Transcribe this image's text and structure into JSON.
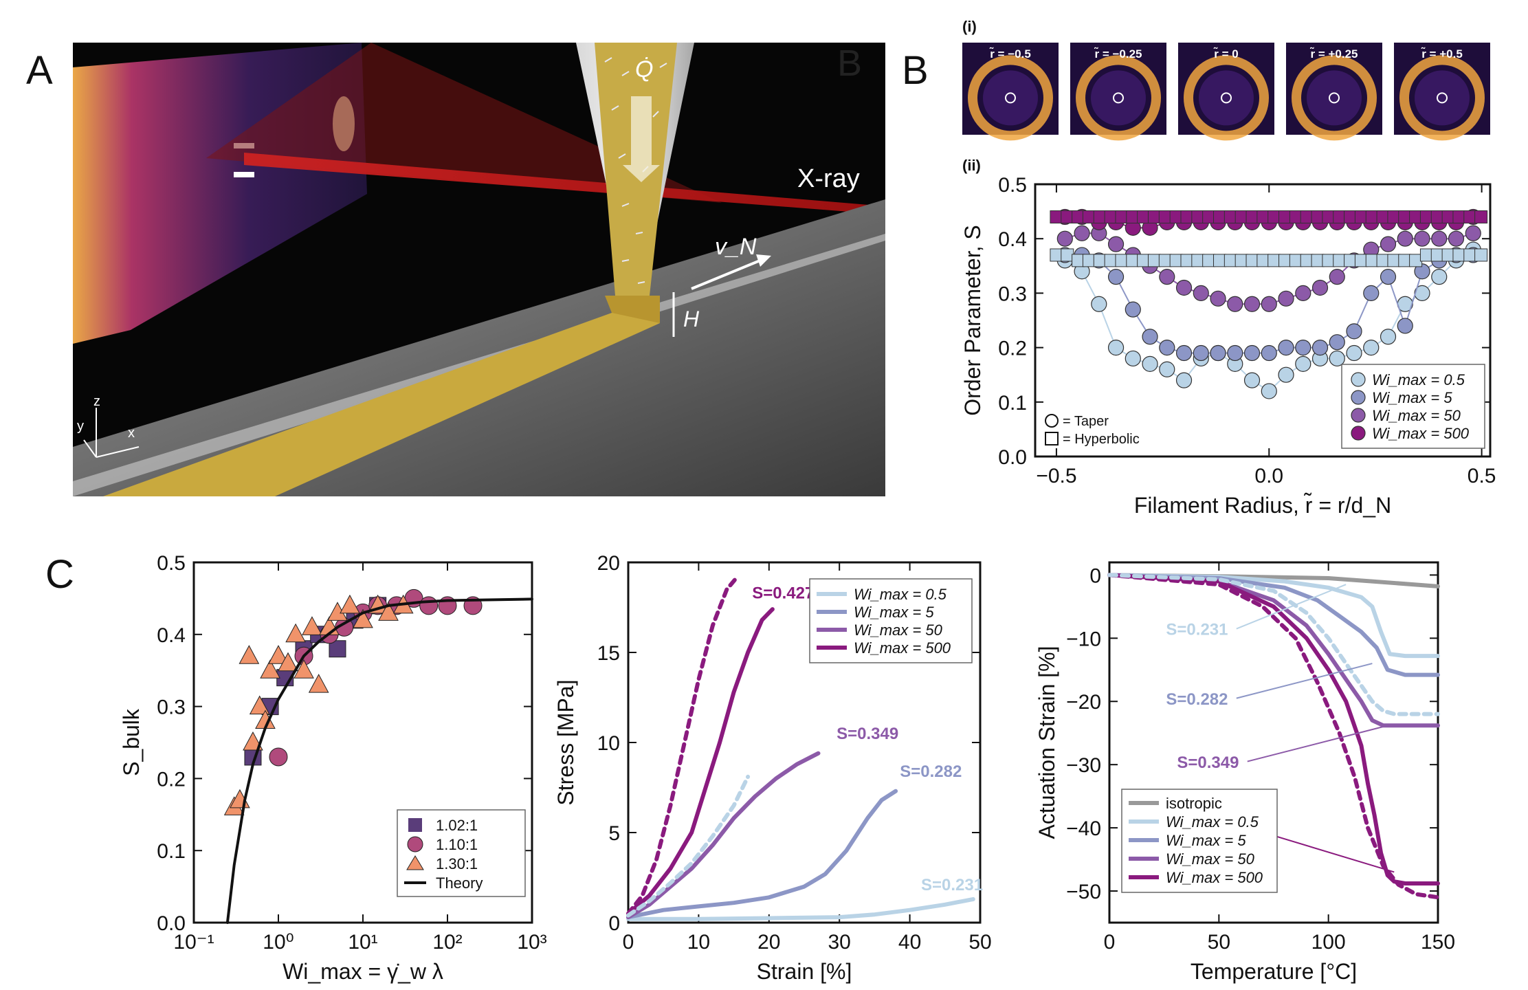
{
  "panels": {
    "A": "A",
    "B": "B",
    "C": "C",
    "B_i": "(i)",
    "B_ii": "(ii)",
    "A_hidden_B": "B"
  },
  "schematic": {
    "label_q": "Q̇",
    "label_xray": "X-ray",
    "label_vn": "v_N",
    "label_h": "H",
    "axis_z": "z",
    "axis_y": "y",
    "axis_x": "x"
  },
  "saxs": {
    "images": [
      {
        "label": "r̃ = −0.5"
      },
      {
        "label": "r̃ = −0.25"
      },
      {
        "label": "r̃ = 0"
      },
      {
        "label": "r̃ = +0.25"
      },
      {
        "label": "r̃ = +0.5"
      }
    ]
  },
  "chart_data": [
    {
      "id": "order-parameter",
      "type": "scatter",
      "xlabel": "Filament Radius, r̃ = r/d_N",
      "ylabel": "Order Parameter, S",
      "xlim": [
        -0.55,
        0.52
      ],
      "ylim": [
        0.0,
        0.5
      ],
      "xticks": [
        "−0.5",
        "0.0",
        "0.5"
      ],
      "yticks": [
        "0.0",
        "0.1",
        "0.2",
        "0.3",
        "0.4",
        "0.5"
      ],
      "legend": [
        "Wi_max = 0.5",
        "Wi_max = 5",
        "Wi_max = 50",
        "Wi_max = 500"
      ],
      "legend_markers": [
        "= Taper",
        "= Hyperbolic"
      ],
      "colors": [
        "#b9d3e6",
        "#8c96c6",
        "#8c5aa8",
        "#8a1a7e"
      ],
      "series": [
        {
          "name": "Wi_max = 0.5",
          "shape": "taper",
          "x": [
            -0.48,
            -0.44,
            -0.4,
            -0.36,
            -0.32,
            -0.28,
            -0.24,
            -0.2,
            -0.16,
            -0.12,
            -0.08,
            -0.04,
            0.0,
            0.04,
            0.08,
            0.12,
            0.16,
            0.2,
            0.24,
            0.28,
            0.32,
            0.36,
            0.4,
            0.44,
            0.48
          ],
          "y": [
            0.36,
            0.34,
            0.28,
            0.2,
            0.18,
            0.17,
            0.16,
            0.14,
            0.18,
            0.19,
            0.17,
            0.14,
            0.12,
            0.15,
            0.17,
            0.18,
            0.18,
            0.19,
            0.2,
            0.22,
            0.28,
            0.3,
            0.33,
            0.36,
            0.38
          ]
        },
        {
          "name": "Wi_max = 5",
          "shape": "taper",
          "x": [
            -0.48,
            -0.44,
            -0.4,
            -0.36,
            -0.32,
            -0.28,
            -0.24,
            -0.2,
            -0.16,
            -0.12,
            -0.08,
            -0.04,
            0.0,
            0.04,
            0.08,
            0.12,
            0.16,
            0.2,
            0.24,
            0.28,
            0.32,
            0.36,
            0.4,
            0.44,
            0.48
          ],
          "y": [
            0.37,
            0.37,
            0.36,
            0.33,
            0.27,
            0.22,
            0.2,
            0.19,
            0.19,
            0.19,
            0.19,
            0.19,
            0.19,
            0.2,
            0.2,
            0.2,
            0.21,
            0.23,
            0.3,
            0.33,
            0.24,
            0.34,
            0.36,
            0.37,
            0.37
          ]
        },
        {
          "name": "Wi_max = 50",
          "shape": "taper",
          "x": [
            -0.48,
            -0.44,
            -0.4,
            -0.36,
            -0.32,
            -0.28,
            -0.24,
            -0.2,
            -0.16,
            -0.12,
            -0.08,
            -0.04,
            0.0,
            0.04,
            0.08,
            0.12,
            0.16,
            0.2,
            0.24,
            0.28,
            0.32,
            0.36,
            0.4,
            0.44,
            0.48
          ],
          "y": [
            0.4,
            0.41,
            0.41,
            0.39,
            0.37,
            0.35,
            0.33,
            0.31,
            0.3,
            0.29,
            0.28,
            0.28,
            0.28,
            0.29,
            0.3,
            0.31,
            0.33,
            0.36,
            0.38,
            0.39,
            0.4,
            0.4,
            0.4,
            0.4,
            0.41
          ]
        },
        {
          "name": "Wi_max = 500",
          "shape": "taper",
          "x": [
            -0.48,
            -0.44,
            -0.4,
            -0.36,
            -0.32,
            -0.28,
            -0.24,
            -0.2,
            -0.16,
            -0.12,
            -0.08,
            -0.04,
            0.0,
            0.04,
            0.08,
            0.12,
            0.16,
            0.2,
            0.24,
            0.28,
            0.32,
            0.36,
            0.4,
            0.44,
            0.48
          ],
          "y": [
            0.44,
            0.44,
            0.43,
            0.43,
            0.42,
            0.42,
            0.43,
            0.43,
            0.43,
            0.43,
            0.43,
            0.43,
            0.43,
            0.43,
            0.43,
            0.43,
            0.43,
            0.43,
            0.43,
            0.43,
            0.43,
            0.43,
            0.43,
            0.43,
            0.44
          ]
        },
        {
          "name": "Hyperbolic Wi_max = 0.5",
          "shape": "hyperbolic",
          "x": [
            -0.5,
            -0.4,
            -0.3,
            -0.2,
            -0.1,
            0.0,
            0.1,
            0.2,
            0.3,
            0.4,
            0.5
          ],
          "y": [
            0.37,
            0.36,
            0.36,
            0.36,
            0.36,
            0.36,
            0.36,
            0.36,
            0.36,
            0.37,
            0.37
          ]
        },
        {
          "name": "Hyperbolic Wi_max = 500",
          "shape": "hyperbolic",
          "x": [
            -0.5,
            -0.4,
            -0.3,
            -0.2,
            -0.1,
            0.0,
            0.1,
            0.2,
            0.3,
            0.4,
            0.5
          ],
          "y": [
            0.44,
            0.44,
            0.44,
            0.44,
            0.44,
            0.44,
            0.44,
            0.44,
            0.44,
            0.44,
            0.44
          ]
        }
      ]
    },
    {
      "id": "s-bulk",
      "type": "scatter",
      "xlabel": "Wi_max = γ̇_w λ",
      "ylabel": "S_bulk",
      "xscale": "log",
      "xlim": [
        0.1,
        1000
      ],
      "ylim": [
        0.0,
        0.5
      ],
      "xticks": [
        "10⁻¹",
        "10⁰",
        "10¹",
        "10²",
        "10³"
      ],
      "yticks": [
        "0.0",
        "0.1",
        "0.2",
        "0.3",
        "0.4",
        "0.5"
      ],
      "legend": [
        "1.02:1",
        "1.10:1",
        "1.30:1",
        "Theory"
      ],
      "series": [
        {
          "name": "1.02:1",
          "marker": "square",
          "color": "#5a3d7a",
          "x": [
            0.5,
            0.8,
            1.2,
            2,
            3,
            5,
            8,
            15
          ],
          "y": [
            0.23,
            0.3,
            0.34,
            0.38,
            0.4,
            0.38,
            0.42,
            0.44
          ]
        },
        {
          "name": "1.10:1",
          "marker": "circle",
          "color": "#b04a7c",
          "x": [
            1,
            2,
            4,
            6,
            10,
            15,
            25,
            40,
            60,
            100,
            200
          ],
          "y": [
            0.23,
            0.37,
            0.4,
            0.41,
            0.43,
            0.44,
            0.44,
            0.45,
            0.44,
            0.44,
            0.44
          ]
        },
        {
          "name": "1.30:1",
          "marker": "triangle",
          "color": "#f0936a",
          "x": [
            0.3,
            0.35,
            0.45,
            0.5,
            0.6,
            0.7,
            0.8,
            1,
            1.3,
            1.6,
            2,
            2.5,
            3,
            4,
            5,
            7,
            10,
            15,
            20,
            30
          ],
          "y": [
            0.16,
            0.17,
            0.37,
            0.25,
            0.3,
            0.28,
            0.35,
            0.37,
            0.36,
            0.4,
            0.35,
            0.41,
            0.33,
            0.41,
            0.43,
            0.44,
            0.42,
            0.44,
            0.43,
            0.44
          ]
        },
        {
          "name": "Theory",
          "marker": "line",
          "color": "#111111",
          "x": [
            0.25,
            0.3,
            0.4,
            0.5,
            0.7,
            1,
            2,
            3,
            5,
            10,
            20,
            50,
            100,
            300,
            1000
          ],
          "y": [
            0.0,
            0.08,
            0.17,
            0.22,
            0.27,
            0.31,
            0.37,
            0.39,
            0.41,
            0.43,
            0.44,
            0.445,
            0.447,
            0.448,
            0.449
          ]
        }
      ]
    },
    {
      "id": "stress-strain",
      "type": "line",
      "xlabel": "Strain [%]",
      "ylabel": "Stress [MPa]",
      "xlim": [
        0,
        50
      ],
      "ylim": [
        0,
        20
      ],
      "xticks": [
        "0",
        "10",
        "20",
        "30",
        "40",
        "50"
      ],
      "yticks": [
        "0",
        "5",
        "10",
        "15",
        "20"
      ],
      "legend": [
        "Wi_max = 0.5",
        "Wi_max = 5",
        "Wi_max = 50",
        "Wi_max = 500"
      ],
      "annotations": [
        "S=0.427",
        "S=0.349",
        "S=0.282",
        "S=0.231"
      ],
      "series": [
        {
          "name": "Wi_max = 0.5",
          "color": "#b9d3e6",
          "style": "solid",
          "x": [
            0,
            10,
            20,
            30,
            35,
            40,
            45,
            49
          ],
          "y": [
            0.2,
            0.2,
            0.25,
            0.3,
            0.45,
            0.7,
            1.0,
            1.3
          ]
        },
        {
          "name": "Wi_max = 5",
          "color": "#8c96c6",
          "style": "solid",
          "x": [
            0,
            5,
            10,
            15,
            20,
            25,
            28,
            31,
            34,
            36,
            38
          ],
          "y": [
            0.3,
            0.7,
            0.9,
            1.1,
            1.4,
            2.0,
            2.7,
            4.0,
            5.8,
            6.8,
            7.3
          ]
        },
        {
          "name": "Wi_max = 50",
          "color": "#8c5aa8",
          "style": "solid",
          "x": [
            0,
            3,
            6,
            9,
            12,
            15,
            18,
            21,
            24,
            27
          ],
          "y": [
            0.3,
            1.0,
            2.0,
            3.0,
            4.3,
            5.8,
            7.0,
            8.0,
            8.8,
            9.4
          ]
        },
        {
          "name": "Wi_max = 500",
          "color": "#8a1a7e",
          "style": "solid",
          "x": [
            0,
            3,
            6,
            9,
            11,
            13,
            15,
            17,
            19,
            20.5
          ],
          "y": [
            0.5,
            1.5,
            3.0,
            5.0,
            7.5,
            10.0,
            12.8,
            15.0,
            16.8,
            17.4
          ]
        },
        {
          "name": "Wi_max = 500 dashed",
          "color": "#8a1a7e",
          "style": "dashed",
          "x": [
            0,
            2,
            4,
            6,
            8,
            10,
            12,
            14,
            15.5
          ],
          "y": [
            0.5,
            1.5,
            3.5,
            6.5,
            10.0,
            13.5,
            16.5,
            18.5,
            19.2
          ]
        },
        {
          "name": "Wi_max = 0.5 dashed",
          "color": "#b9d3e6",
          "style": "dashed",
          "x": [
            0,
            3,
            6,
            9,
            12,
            15,
            17
          ],
          "y": [
            0.4,
            1.2,
            2.2,
            3.3,
            4.8,
            6.5,
            8.1
          ]
        }
      ]
    },
    {
      "id": "actuation",
      "type": "line",
      "xlabel": "Temperature [°C]",
      "ylabel": "Actuation Strain [%]",
      "xlim": [
        0,
        150
      ],
      "ylim": [
        -55,
        2
      ],
      "xticks": [
        "0",
        "50",
        "100",
        "150"
      ],
      "yticks": [
        "0",
        "−10",
        "−20",
        "−30",
        "−40",
        "−50"
      ],
      "legend": [
        "isotropic",
        "Wi_max = 0.5",
        "Wi_max = 5",
        "Wi_max = 50",
        "Wi_max = 500"
      ],
      "annotations": [
        "S=0.231",
        "S=0.282",
        "S=0.349",
        "S=0.427"
      ],
      "series": [
        {
          "name": "isotropic",
          "color": "#999999",
          "style": "solid",
          "x": [
            0,
            50,
            100,
            120,
            150
          ],
          "y": [
            0,
            -0.2,
            -0.5,
            -1.0,
            -1.8
          ]
        },
        {
          "name": "Wi_max = 0.5",
          "color": "#b9d3e6",
          "style": "solid",
          "x": [
            0,
            50,
            80,
            100,
            115,
            120,
            124,
            128,
            135,
            150
          ],
          "y": [
            0,
            -0.3,
            -1.0,
            -2.0,
            -3.5,
            -5,
            -9,
            -12.5,
            -12.8,
            -12.8
          ]
        },
        {
          "name": "Wi_max = 5",
          "color": "#8c96c6",
          "style": "solid",
          "x": [
            0,
            50,
            80,
            95,
            105,
            115,
            122,
            127,
            135,
            150
          ],
          "y": [
            0,
            -0.5,
            -2.0,
            -4.0,
            -6.5,
            -9.0,
            -11.5,
            -15.0,
            -15.8,
            -15.8
          ]
        },
        {
          "name": "Wi_max = 50",
          "color": "#8c5aa8",
          "style": "solid",
          "x": [
            0,
            50,
            75,
            90,
            100,
            110,
            115,
            120,
            125,
            135,
            150
          ],
          "y": [
            0,
            -1.0,
            -4.0,
            -8.0,
            -12.5,
            -17.5,
            -20.0,
            -23.0,
            -23.8,
            -23.8,
            -23.8
          ]
        },
        {
          "name": "Wi_max = 500",
          "color": "#8a1a7e",
          "style": "solid",
          "x": [
            0,
            50,
            75,
            90,
            100,
            108,
            115,
            118,
            121,
            124,
            127,
            130,
            135,
            150
          ],
          "y": [
            0,
            -1.0,
            -5.0,
            -10.0,
            -15.0,
            -20.0,
            -27.0,
            -33.0,
            -38.0,
            -44.0,
            -47.5,
            -48.5,
            -48.8,
            -48.8
          ]
        },
        {
          "name": "Wi_max = 500 dashed",
          "color": "#8a1a7e",
          "style": "dashed",
          "x": [
            0,
            50,
            70,
            85,
            95,
            105,
            112,
            118,
            125,
            132,
            140,
            150
          ],
          "y": [
            0,
            -1.5,
            -5.0,
            -10.0,
            -17.0,
            -25.0,
            -32.0,
            -40.0,
            -46.0,
            -49.0,
            -50.5,
            -51.0
          ]
        },
        {
          "name": "Wi_max = 0.5 dashed",
          "color": "#b9d3e6",
          "style": "dashed",
          "x": [
            0,
            50,
            75,
            90,
            100,
            110,
            120,
            125,
            130,
            150
          ],
          "y": [
            0,
            -0.7,
            -2.5,
            -6.0,
            -10.0,
            -15.0,
            -20.0,
            -21.5,
            -22.0,
            -22.0
          ]
        }
      ]
    }
  ]
}
